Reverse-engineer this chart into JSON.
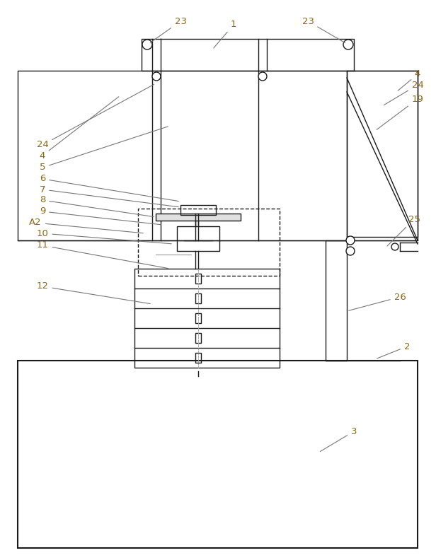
{
  "bg_color": "#ffffff",
  "line_color": "#1a1a1a",
  "line_width": 1.0,
  "thick_line": 1.5,
  "annotation_color": "#8B6914",
  "fig_width": 6.16,
  "fig_height": 7.92,
  "dpi": 100
}
